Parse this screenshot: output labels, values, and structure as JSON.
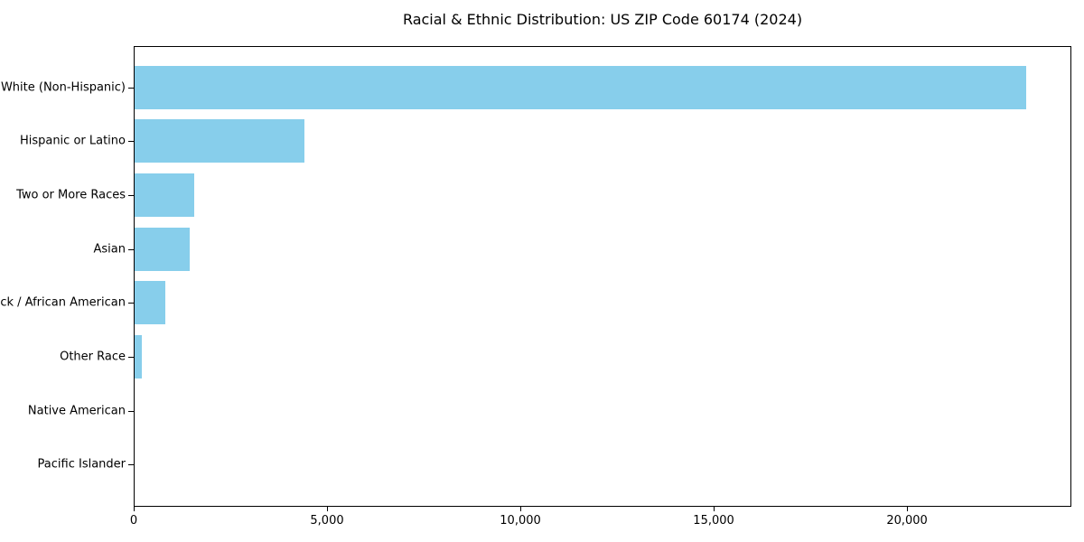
{
  "chart_data": {
    "type": "bar",
    "orientation": "horizontal",
    "title": "Racial & Ethnic Distribution: US ZIP Code 60174 (2024)",
    "categories": [
      "White (Non-Hispanic)",
      "Hispanic or Latino",
      "Two or More Races",
      "Asian",
      "Black / African American",
      "Other Race",
      "Native American",
      "Pacific Islander"
    ],
    "values": [
      23100,
      4400,
      1550,
      1430,
      800,
      190,
      0,
      0
    ],
    "xlabel": "",
    "ylabel": "",
    "xlim": [
      0,
      24250
    ],
    "xticks": [
      {
        "value": 0,
        "label": "0"
      },
      {
        "value": 5000,
        "label": "5,000"
      },
      {
        "value": 10000,
        "label": "10,000"
      },
      {
        "value": 15000,
        "label": "15,000"
      },
      {
        "value": 20000,
        "label": "20,000"
      }
    ],
    "grid": false,
    "legend": false,
    "bar_color": "#87CEEB",
    "axis_color": "#000000",
    "background_color": "#FFFFFF"
  }
}
